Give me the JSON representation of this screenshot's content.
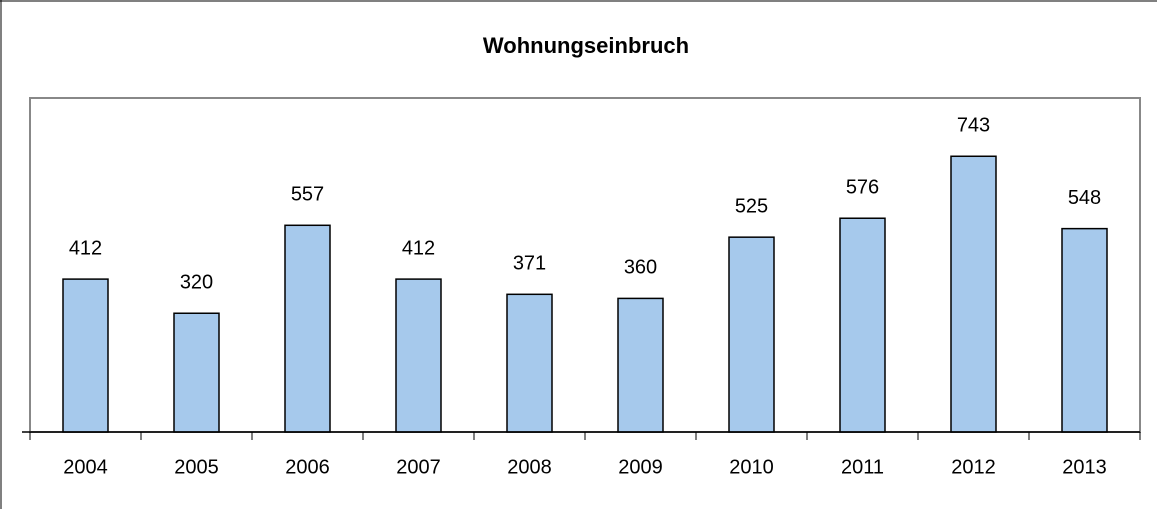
{
  "chart_data": {
    "type": "bar",
    "title": "Wohnungseinbruch",
    "categories": [
      "2004",
      "2005",
      "2006",
      "2007",
      "2008",
      "2009",
      "2010",
      "2011",
      "2012",
      "2013"
    ],
    "values": [
      412,
      320,
      557,
      412,
      371,
      360,
      525,
      576,
      743,
      548
    ],
    "color": "#a6c9ec",
    "ylim": [
      0,
      900
    ]
  }
}
